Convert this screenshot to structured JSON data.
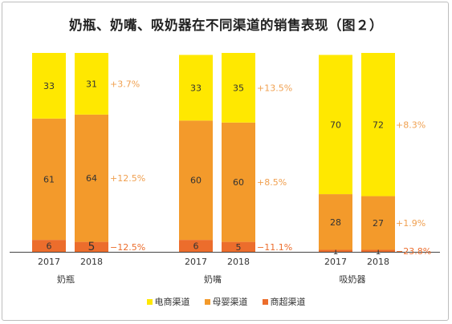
{
  "chart_data": {
    "type": "bar",
    "title": "奶瓶、奶嘴、吸奶器在不同渠道的销售表现（图２）",
    "groups": [
      {
        "name": "奶瓶",
        "years": [
          "2017",
          "2018"
        ],
        "stacks": [
          {
            "series": "商超渠道",
            "values": [
              6,
              5
            ]
          },
          {
            "series": "母婴渠道",
            "values": [
              61,
              64
            ]
          },
          {
            "series": "电商渠道",
            "values": [
              33,
              31
            ]
          }
        ],
        "changes": {
          "电商渠道": "+3.7%",
          "母婴渠道": "+12.5%",
          "商超渠道": "−12.5%"
        }
      },
      {
        "name": "奶嘴",
        "years": [
          "2017",
          "2018"
        ],
        "stacks": [
          {
            "series": "商超渠道",
            "values": [
              6,
              5
            ]
          },
          {
            "series": "母婴渠道",
            "values": [
              60,
              60
            ]
          },
          {
            "series": "电商渠道",
            "values": [
              33,
              35
            ]
          }
        ],
        "changes": {
          "电商渠道": "+13.5%",
          "母婴渠道": "+8.5%",
          "商超渠道": "−11.1%"
        }
      },
      {
        "name": "吸奶器",
        "years": [
          "2017",
          "2018"
        ],
        "stacks": [
          {
            "series": "商超渠道",
            "values": [
              1,
              1
            ]
          },
          {
            "series": "母婴渠道",
            "values": [
              28,
              27
            ]
          },
          {
            "series": "电商渠道",
            "values": [
              70,
              72
            ]
          }
        ],
        "changes": {
          "电商渠道": "+8.3%",
          "母婴渠道": "+1.9%",
          "商超渠道": "−23.8%"
        }
      }
    ],
    "legend": [
      "电商渠道",
      "母婴渠道",
      "商超渠道"
    ],
    "legend_position": "bottom",
    "colors": {
      "电商渠道": "#ffe800",
      "母婴渠道": "#f39a2b",
      "商超渠道": "#ec6d2c",
      "change_label": "#f0a050",
      "change_label_negative": "#ec6d2c"
    },
    "grid": false
  }
}
